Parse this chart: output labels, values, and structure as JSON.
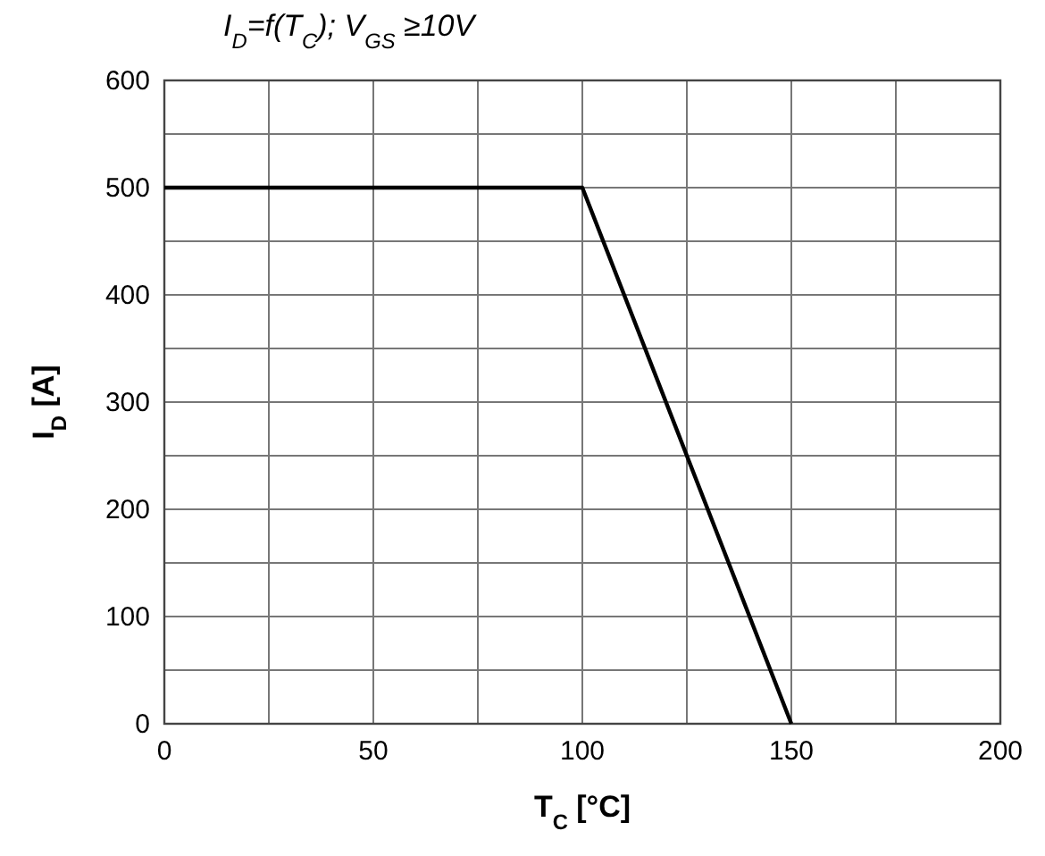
{
  "chart_data": {
    "type": "line",
    "title": "I$_{D}$=f(T$_{C}$); V$_{GS}$ ≥10V",
    "xlabel": "T$_{C}$ [°C]",
    "ylabel": "I$_{D}$ [A]",
    "x": [
      0,
      100,
      150
    ],
    "series": [
      {
        "color": "#000000",
        "values": [
          500,
          500,
          0
        ]
      }
    ],
    "xlim": [
      0,
      200
    ],
    "ylim": [
      0,
      600
    ],
    "xticks": [
      0,
      {
        "value": 25,
        "label": null
      },
      50,
      {
        "value": 75,
        "label": null
      },
      100,
      {
        "value": 125,
        "label": null
      },
      150,
      {
        "value": 175,
        "label": null
      },
      200
    ],
    "yticks": [
      0,
      {
        "value": 50,
        "label": null
      },
      100,
      {
        "value": 150,
        "label": null
      },
      200,
      {
        "value": 250,
        "label": null
      },
      300,
      {
        "value": 350,
        "label": null
      },
      400,
      {
        "value": 450,
        "label": null
      },
      500,
      {
        "value": 550,
        "label": null
      },
      600
    ],
    "grid": true,
    "marker": "none",
    "line_style": "solid"
  }
}
